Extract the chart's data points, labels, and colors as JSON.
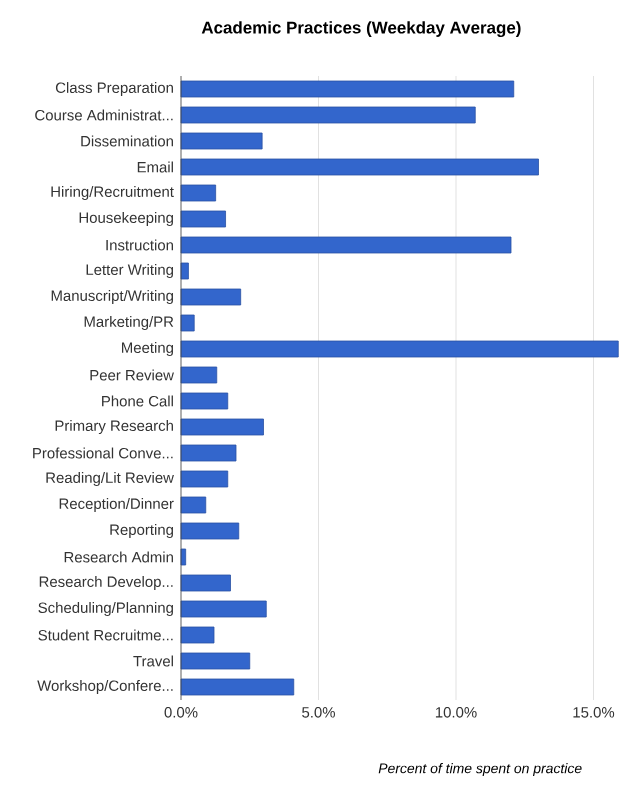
{
  "chart_data": {
    "type": "bar",
    "orientation": "horizontal",
    "title": "Academic Practices (Weekday Average)",
    "xlabel": "Percent of time spent on practice",
    "categories": [
      "Class Preparation",
      "Course Administrat...",
      "Dissemination",
      "Email",
      "Hiring/Recruitment",
      "Housekeeping",
      "Instruction",
      "Letter Writing",
      "Manuscript/Writing",
      "Marketing/PR",
      "Meeting",
      "Peer Review",
      "Phone Call",
      "Primary Research",
      "Professional Conve...",
      "Reading/Lit Review",
      "Reception/Dinner",
      "Reporting",
      "Research Admin",
      "Research Develop...",
      "Scheduling/Planning",
      "Student Recruitme...",
      "Travel",
      "Workshop/Confere..."
    ],
    "values": [
      12.1,
      10.7,
      2.95,
      13.0,
      1.26,
      1.62,
      12.0,
      0.27,
      2.17,
      0.48,
      15.9,
      1.3,
      1.7,
      3.0,
      2.0,
      1.7,
      0.9,
      2.1,
      0.17,
      1.8,
      3.1,
      1.2,
      2.5,
      4.1
    ],
    "color": "#3366cc",
    "xlim": [
      0,
      16
    ],
    "xticks": [
      {
        "value": 0,
        "label": "0.0%"
      },
      {
        "value": 5,
        "label": "5.0%"
      },
      {
        "value": 10,
        "label": "10.0%"
      },
      {
        "value": 15,
        "label": "15.0%"
      }
    ],
    "grid": "x"
  }
}
